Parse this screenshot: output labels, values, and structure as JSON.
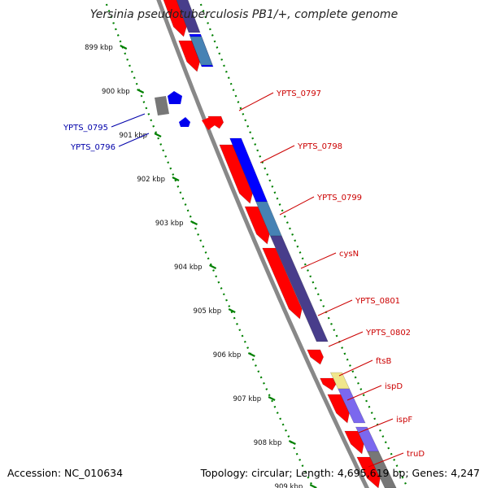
{
  "title": "Yersinia pseudotuberculosis PB1/+, complete genome",
  "accession": "Accession: NC_010634",
  "summary": "Topology: circular; Length: 4,695,619 bp; Genes: 4,247",
  "colors": {
    "forward_gene": "#ff0000",
    "reverse_gene": "#0000ee",
    "label_forward": "#cc0000",
    "label_reverse": "#0000aa",
    "backbone": "#888888",
    "tick": "#008000",
    "cds_blue": "#0000ff",
    "cds_steel": "#4682b4",
    "cds_slate": "#483d8b",
    "cds_medium": "#7b68ee",
    "cds_khaki": "#f0e68c",
    "cds_gray": "#777777"
  },
  "ticks": [
    "899 kbp",
    "900 kbp",
    "901 kbp",
    "902 kbp",
    "903 kbp",
    "904 kbp",
    "905 kbp",
    "906 kbp",
    "907 kbp",
    "908 kbp",
    "909 kbp"
  ],
  "gene_labels": [
    {
      "name": "YPTS_0795",
      "strand": "reverse"
    },
    {
      "name": "YPTS_0796",
      "strand": "reverse"
    },
    {
      "name": "YPTS_0797",
      "strand": "forward"
    },
    {
      "name": "YPTS_0798",
      "strand": "forward"
    },
    {
      "name": "YPTS_0799",
      "strand": "forward"
    },
    {
      "name": "cysN",
      "strand": "forward"
    },
    {
      "name": "YPTS_0801",
      "strand": "forward"
    },
    {
      "name": "YPTS_0802",
      "strand": "forward"
    },
    {
      "name": "ftsB",
      "strand": "forward"
    },
    {
      "name": "ispD",
      "strand": "forward"
    },
    {
      "name": "ispF",
      "strand": "forward"
    },
    {
      "name": "truD",
      "strand": "forward"
    }
  ]
}
